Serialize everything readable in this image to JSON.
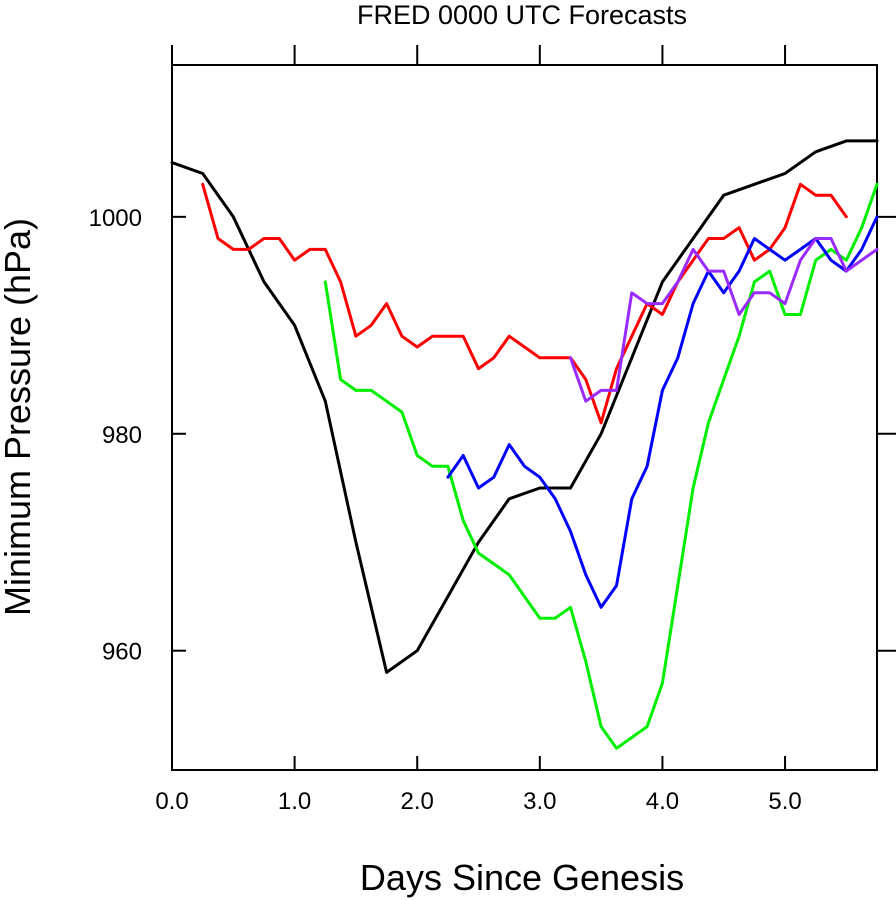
{
  "chart_data": {
    "type": "line",
    "title": "FRED 0000 UTC Forecasts",
    "xlabel": "Days Since Genesis",
    "ylabel": "Minimum Pressure (hPa)",
    "xlim": [
      0.0,
      5.75
    ],
    "ylim": [
      949,
      1014
    ],
    "x_ticks": [
      0.0,
      1.0,
      2.0,
      3.0,
      4.0,
      5.0
    ],
    "x_tick_labels": [
      "0.0",
      "1.0",
      "2.0",
      "3.0",
      "4.0",
      "5.0"
    ],
    "y_ticks": [
      960,
      980,
      1000
    ],
    "y_tick_labels": [
      "960",
      "980",
      "1000"
    ],
    "grid": false,
    "series": [
      {
        "color": "#000000",
        "x": [
          0.0,
          0.25,
          0.5,
          0.75,
          1.0,
          1.25,
          1.5,
          1.75,
          2.0,
          2.25,
          2.5,
          2.75,
          3.0,
          3.25,
          3.5,
          3.75,
          4.0,
          4.25,
          4.5,
          4.75,
          5.0,
          5.25,
          5.5,
          5.75
        ],
        "y": [
          1005,
          1004,
          1000,
          994,
          990,
          983,
          970,
          958,
          960,
          965,
          970,
          974,
          975,
          975,
          980,
          987,
          994,
          998,
          1002,
          1003,
          1004,
          1006,
          1007,
          1007
        ]
      },
      {
        "color": "#ff0000",
        "x": [
          0.25,
          0.375,
          0.5,
          0.625,
          0.75,
          0.875,
          1.0,
          1.125,
          1.25,
          1.375,
          1.5,
          1.625,
          1.75,
          1.875,
          2.0,
          2.125,
          2.25,
          2.375,
          2.5,
          2.625,
          2.75,
          2.875,
          3.0,
          3.125,
          3.25,
          3.375,
          3.5,
          3.625,
          3.75,
          3.875,
          4.0,
          4.125,
          4.25,
          4.375,
          4.5,
          4.625,
          4.75,
          4.875,
          5.0,
          5.125,
          5.25,
          5.375,
          5.5
        ],
        "y": [
          1003,
          998,
          997,
          997,
          998,
          998,
          996,
          997,
          997,
          994,
          989,
          990,
          992,
          989,
          988,
          989,
          989,
          989,
          986,
          987,
          989,
          988,
          987,
          987,
          987,
          985,
          981,
          986,
          989,
          992,
          991,
          994,
          996,
          998,
          998,
          999,
          996,
          997,
          999,
          1003,
          1002,
          1002,
          1000
        ]
      },
      {
        "color": "#00ee00",
        "x": [
          1.25,
          1.375,
          1.5,
          1.625,
          1.75,
          1.875,
          2.0,
          2.125,
          2.25,
          2.375,
          2.5,
          2.625,
          2.75,
          2.875,
          3.0,
          3.125,
          3.25,
          3.375,
          3.5,
          3.625,
          3.75,
          3.875,
          4.0,
          4.125,
          4.25,
          4.375,
          4.5,
          4.625,
          4.75,
          4.875,
          5.0,
          5.125,
          5.25,
          5.375,
          5.5,
          5.625,
          5.75
        ],
        "y": [
          994,
          985,
          984,
          984,
          983,
          982,
          978,
          977,
          977,
          972,
          969,
          968,
          967,
          965,
          963,
          963,
          964,
          959,
          953,
          951,
          952,
          953,
          957,
          966,
          975,
          981,
          985,
          989,
          994,
          995,
          991,
          991,
          996,
          997,
          996,
          999,
          1003
        ]
      },
      {
        "color": "#0000ff",
        "x": [
          2.25,
          2.375,
          2.5,
          2.625,
          2.75,
          2.875,
          3.0,
          3.125,
          3.25,
          3.375,
          3.5,
          3.625,
          3.75,
          3.875,
          4.0,
          4.125,
          4.25,
          4.375,
          4.5,
          4.625,
          4.75,
          4.875,
          5.0,
          5.125,
          5.25,
          5.375,
          5.5,
          5.625,
          5.75
        ],
        "y": [
          976,
          978,
          975,
          976,
          979,
          977,
          976,
          974,
          971,
          967,
          964,
          966,
          974,
          977,
          984,
          987,
          992,
          995,
          993,
          995,
          998,
          997,
          996,
          997,
          998,
          996,
          995,
          997,
          1000
        ]
      },
      {
        "color": "#9a2bff",
        "x": [
          3.25,
          3.375,
          3.5,
          3.625,
          3.75,
          3.875,
          4.0,
          4.125,
          4.25,
          4.375,
          4.5,
          4.625,
          4.75,
          4.875,
          5.0,
          5.125,
          5.25,
          5.375,
          5.5,
          5.625,
          5.75
        ],
        "y": [
          987,
          983,
          984,
          984,
          993,
          992,
          992,
          994,
          997,
          995,
          995,
          991,
          993,
          993,
          992,
          996,
          998,
          998,
          995,
          996,
          997
        ]
      }
    ]
  }
}
